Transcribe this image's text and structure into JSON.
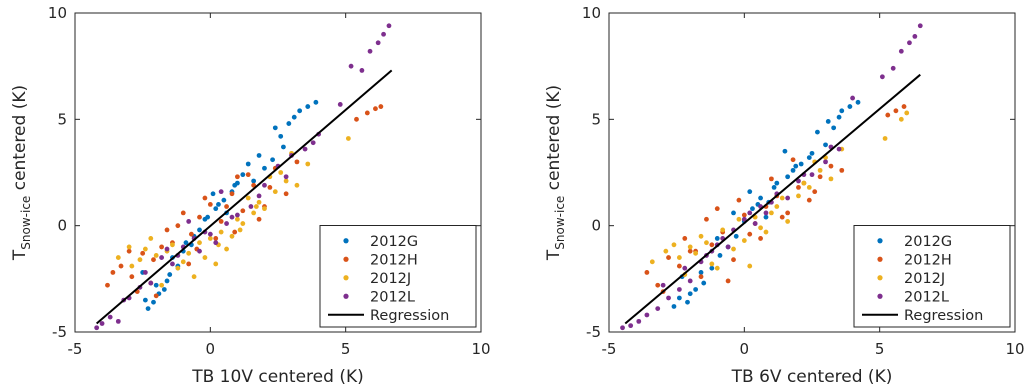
{
  "chart_data": [
    {
      "type": "scatter",
      "xlabel": "TB 10V centered (K)",
      "ylabel_main": "T",
      "ylabel_sub": "Snow-ice",
      "ylabel_rest": " centered (K)",
      "xlim": [
        -5,
        10
      ],
      "ylim": [
        -5,
        10
      ],
      "xticks": [
        "-5",
        "0",
        "5",
        "10"
      ],
      "yticks": [
        "-5",
        "0",
        "5",
        "10"
      ],
      "grid": false,
      "legend_position": "bottom-right",
      "colors": {
        "2012G": "#0072BD",
        "2012H": "#D95319",
        "2012J": "#EDB120",
        "2012L": "#7E2F8E",
        "Regression": "#000000"
      },
      "series": [
        {
          "name": "2012G",
          "x": [
            -2.3,
            -2.1,
            -1.9,
            -2.5,
            -1.6,
            -1.4,
            -1.0,
            -0.6,
            -0.2,
            0.2,
            0.5,
            0.8,
            1.2,
            1.6,
            2.0,
            2.3,
            2.6,
            2.9,
            3.3,
            3.6,
            3.9,
            -0.4,
            -2.0,
            -1.2,
            0.1,
            0.6,
            1.0,
            -1.7,
            -0.9,
            -0.1,
            0.9,
            1.4,
            2.7,
            -2.4,
            -1.5,
            0.3,
            1.8,
            2.4,
            3.1,
            -0.7
          ],
          "y": [
            -3.9,
            -3.6,
            -3.2,
            -2.2,
            -2.6,
            -1.5,
            -1.2,
            -0.5,
            0.3,
            0.8,
            1.2,
            1.6,
            2.4,
            2.1,
            2.7,
            3.1,
            4.2,
            4.8,
            5.4,
            5.6,
            5.8,
            -0.2,
            -2.8,
            -1.9,
            1.5,
            0.6,
            2.0,
            -3.0,
            -0.8,
            0.4,
            1.9,
            2.9,
            3.7,
            -3.5,
            -2.3,
            1.0,
            3.3,
            4.6,
            5.1,
            -0.9
          ]
        },
        {
          "name": "2012H",
          "x": [
            -3.8,
            -3.3,
            -2.9,
            -2.5,
            -2.1,
            -1.8,
            -1.4,
            -1.0,
            -0.7,
            -0.4,
            0.0,
            0.4,
            0.8,
            1.2,
            1.6,
            2.0,
            2.4,
            2.8,
            3.2,
            5.4,
            5.8,
            6.1,
            6.3,
            -3.6,
            -2.7,
            -1.6,
            -0.8,
            0.2,
            1.0,
            1.8,
            -3.0,
            -2.2,
            -1.2,
            -0.2,
            0.6,
            1.4,
            2.2,
            -2.0,
            -0.5,
            0.9
          ],
          "y": [
            -2.8,
            -1.9,
            -2.4,
            -1.3,
            -1.6,
            -1.0,
            -0.8,
            0.6,
            -0.4,
            0.4,
            1.0,
            0.2,
            1.5,
            0.7,
            1.9,
            0.9,
            2.7,
            1.5,
            3.0,
            5.0,
            5.3,
            5.5,
            5.6,
            -2.2,
            -3.1,
            -0.2,
            -1.8,
            -0.6,
            2.3,
            0.3,
            -1.2,
            -2.7,
            0.0,
            1.3,
            0.9,
            2.4,
            1.8,
            -3.3,
            -1.1,
            -0.3
          ]
        },
        {
          "name": "2012J",
          "x": [
            -3.4,
            -2.9,
            -2.4,
            -2.0,
            -1.6,
            -1.2,
            -0.8,
            -0.4,
            0.0,
            0.4,
            0.8,
            1.2,
            1.6,
            2.0,
            2.4,
            2.8,
            3.2,
            3.6,
            5.1,
            -3.0,
            -2.2,
            -1.4,
            -0.6,
            0.2,
            1.0,
            1.8,
            2.6,
            -1.8,
            -1.0,
            0.6,
            1.4,
            2.2,
            -2.6,
            0.3,
            1.1,
            3.0,
            -0.2,
            1.7
          ],
          "y": [
            -1.5,
            -1.9,
            -1.1,
            -1.4,
            -1.2,
            -2.0,
            -1.3,
            -0.8,
            -0.6,
            -0.3,
            -0.5,
            0.1,
            0.6,
            0.8,
            1.6,
            2.1,
            1.9,
            2.9,
            4.1,
            -1.0,
            -0.6,
            -0.9,
            -2.4,
            -1.8,
            0.3,
            1.1,
            2.5,
            -2.8,
            -1.7,
            -1.1,
            1.3,
            2.3,
            -1.6,
            -0.9,
            -0.2,
            3.4,
            -1.5,
            0.9
          ]
        },
        {
          "name": "2012L",
          "x": [
            -4.2,
            -4.0,
            -3.7,
            -3.4,
            -3.0,
            -2.6,
            -2.2,
            -1.8,
            -1.4,
            -1.0,
            -0.6,
            -0.2,
            0.2,
            0.6,
            1.0,
            1.5,
            2.0,
            2.5,
            3.0,
            3.5,
            4.0,
            4.8,
            5.2,
            5.6,
            5.9,
            6.2,
            6.4,
            6.6,
            -1.6,
            -0.8,
            0.0,
            0.8,
            1.8,
            2.8,
            3.8,
            -3.2,
            -2.4,
            -1.2,
            -0.4,
            0.4
          ],
          "y": [
            -4.8,
            -4.6,
            -4.3,
            -4.5,
            -3.4,
            -2.9,
            -2.7,
            -1.5,
            -1.8,
            -1.0,
            -0.6,
            -0.3,
            -0.8,
            0.1,
            0.5,
            0.9,
            1.9,
            2.8,
            3.3,
            3.6,
            4.3,
            5.7,
            7.5,
            7.3,
            8.2,
            8.6,
            9.0,
            9.4,
            -1.1,
            0.2,
            -0.4,
            0.4,
            1.4,
            2.3,
            3.9,
            -3.5,
            -2.2,
            -1.4,
            -1.2,
            1.6
          ]
        }
      ],
      "regression": {
        "name": "Regression",
        "x": [
          -4.2,
          6.7
        ],
        "y": [
          -4.6,
          7.3
        ]
      }
    },
    {
      "type": "scatter",
      "xlabel": "TB 6V centered (K)",
      "ylabel_main": "T",
      "ylabel_sub": "Snow-ice",
      "ylabel_rest": " centered (K)",
      "xlim": [
        -5,
        10
      ],
      "ylim": [
        -5,
        10
      ],
      "xticks": [
        "-5",
        "0",
        "5",
        "10"
      ],
      "yticks": [
        "-5",
        "0",
        "5",
        "10"
      ],
      "grid": false,
      "legend_position": "bottom-right",
      "colors": {
        "2012G": "#0072BD",
        "2012H": "#D95319",
        "2012J": "#EDB120",
        "2012L": "#7E2F8E",
        "Regression": "#000000"
      },
      "series": [
        {
          "name": "2012G",
          "x": [
            -2.6,
            -2.4,
            -2.1,
            -1.8,
            -1.5,
            -1.2,
            -0.9,
            -0.6,
            -0.3,
            0.0,
            0.3,
            0.6,
            0.9,
            1.2,
            1.5,
            1.8,
            2.1,
            2.4,
            2.7,
            3.0,
            3.3,
            3.6,
            3.9,
            4.2,
            -2.3,
            -1.0,
            0.2,
            0.8,
            1.6,
            2.5,
            -1.6,
            -0.4,
            1.1,
            3.1,
            -2.0,
            0.5,
            1.9,
            3.5
          ],
          "y": [
            -3.8,
            -3.4,
            -3.6,
            -3.0,
            -2.7,
            -2.0,
            -1.4,
            -1.0,
            -0.5,
            0.2,
            0.8,
            1.3,
            1.1,
            2.0,
            3.5,
            2.6,
            2.9,
            3.2,
            4.4,
            3.8,
            4.6,
            5.4,
            5.6,
            5.8,
            -2.4,
            -0.6,
            1.6,
            0.4,
            2.3,
            3.4,
            -2.2,
            0.6,
            1.8,
            4.9,
            -3.2,
            1.0,
            2.8,
            5.1
          ]
        },
        {
          "name": "2012H",
          "x": [
            -3.6,
            -3.2,
            -2.8,
            -2.4,
            -2.0,
            -1.6,
            -1.2,
            -0.8,
            -0.4,
            0.0,
            0.4,
            0.8,
            1.2,
            1.6,
            2.0,
            2.4,
            2.8,
            3.2,
            3.6,
            5.3,
            5.6,
            5.9,
            -3.0,
            -2.2,
            -1.4,
            -0.6,
            0.2,
            1.0,
            1.8,
            2.6,
            -1.0,
            0.6,
            1.4,
            -1.8,
            -0.2,
            2.2
          ],
          "y": [
            -2.2,
            -2.8,
            -1.5,
            -1.9,
            -1.2,
            -2.4,
            -0.9,
            -0.3,
            -1.6,
            0.5,
            0.1,
            0.9,
            1.4,
            0.6,
            1.8,
            1.2,
            2.3,
            2.8,
            2.6,
            5.2,
            5.4,
            5.6,
            -3.1,
            -0.6,
            0.3,
            -2.6,
            -0.4,
            2.2,
            3.1,
            1.6,
            0.8,
            -0.6,
            0.4,
            -1.2,
            1.2,
            2.0
          ]
        },
        {
          "name": "2012J",
          "x": [
            -3.4,
            -2.9,
            -2.4,
            -2.0,
            -1.6,
            -1.2,
            -0.8,
            -0.4,
            0.0,
            0.4,
            0.8,
            1.2,
            1.6,
            2.0,
            2.4,
            2.8,
            3.2,
            3.6,
            5.2,
            5.8,
            6.0,
            -2.6,
            -1.8,
            -1.0,
            -0.2,
            0.6,
            1.4,
            2.2,
            3.0,
            -1.4,
            0.2,
            1.0,
            -2.2,
            2.6
          ],
          "y": [
            -1.7,
            -1.2,
            -1.5,
            -1.0,
            -0.5,
            -1.8,
            -0.2,
            -1.1,
            -0.7,
            0.4,
            -0.3,
            0.9,
            0.2,
            1.4,
            1.8,
            2.6,
            2.2,
            3.6,
            4.1,
            5.0,
            5.3,
            -0.9,
            -1.3,
            -2.0,
            0.3,
            -0.1,
            1.3,
            2.0,
            3.2,
            -0.8,
            -1.9,
            0.6,
            -2.3,
            3.0
          ]
        },
        {
          "name": "2012L",
          "x": [
            -4.5,
            -4.2,
            -3.9,
            -3.6,
            -3.2,
            -2.8,
            -2.4,
            -2.0,
            -1.6,
            -1.2,
            -0.8,
            -0.4,
            0.0,
            0.4,
            0.8,
            1.2,
            1.6,
            2.0,
            2.5,
            3.0,
            3.5,
            4.0,
            5.1,
            5.5,
            5.8,
            6.1,
            6.3,
            6.5,
            -3.0,
            -2.2,
            -1.4,
            -0.6,
            0.2,
            1.0,
            2.2,
            3.2,
            -1.0,
            0.6
          ],
          "y": [
            -4.8,
            -4.7,
            -4.5,
            -4.2,
            -3.9,
            -3.4,
            -3.0,
            -2.6,
            -1.7,
            -1.2,
            -0.6,
            -0.2,
            0.3,
            0.1,
            0.6,
            1.5,
            1.3,
            2.1,
            2.4,
            3.0,
            3.6,
            6.0,
            7.0,
            7.4,
            8.2,
            8.6,
            8.9,
            9.4,
            -2.8,
            -2.0,
            -1.4,
            -1.0,
            0.6,
            1.1,
            2.4,
            3.7,
            -0.9,
            0.9
          ]
        }
      ],
      "regression": {
        "name": "Regression",
        "x": [
          -4.4,
          6.5
        ],
        "y": [
          -4.6,
          7.1
        ]
      }
    }
  ]
}
